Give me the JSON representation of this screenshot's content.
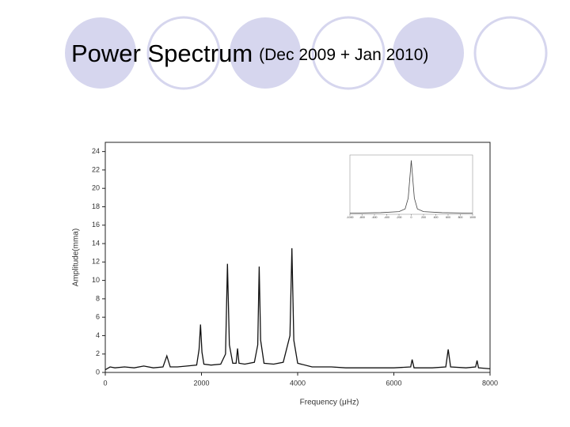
{
  "slide": {
    "title": "Power Spectrum",
    "subtitle": "(Dec 2009 + Jan 2010)"
  },
  "chart_data": [
    {
      "type": "line",
      "x_label": "Frequency (μHz)",
      "y_label": "Amplitude(mma)",
      "x": [
        0,
        100,
        200,
        400,
        600,
        800,
        1000,
        1200,
        1280,
        1350,
        1500,
        1700,
        1900,
        1950,
        1980,
        2010,
        2050,
        2200,
        2400,
        2500,
        2540,
        2580,
        2650,
        2720,
        2750,
        2780,
        2900,
        3100,
        3170,
        3200,
        3230,
        3300,
        3500,
        3700,
        3840,
        3880,
        3920,
        4000,
        4300,
        4700,
        5000,
        5500,
        6000,
        6350,
        6380,
        6420,
        6800,
        7080,
        7130,
        7180,
        7500,
        7700,
        7730,
        7760,
        8000
      ],
      "values": [
        0.3,
        0.6,
        0.5,
        0.6,
        0.5,
        0.7,
        0.5,
        0.6,
        1.8,
        0.6,
        0.6,
        0.7,
        0.8,
        2.5,
        5.2,
        2.2,
        0.9,
        0.8,
        0.9,
        2,
        11.8,
        3,
        1,
        1,
        2.6,
        1,
        0.9,
        1.1,
        3,
        11.5,
        3.5,
        1,
        0.9,
        1.1,
        4,
        13.5,
        3.5,
        1,
        0.6,
        0.6,
        0.5,
        0.5,
        0.5,
        0.6,
        1.4,
        0.5,
        0.5,
        0.6,
        2.5,
        0.6,
        0.5,
        0.6,
        1.3,
        0.5,
        0.4
      ],
      "color": "#111111",
      "xlim": [
        0,
        8000
      ],
      "xticks": [
        0,
        2000,
        4000,
        6000,
        8000
      ],
      "ylim": [
        0,
        25
      ],
      "yticks": [
        0,
        2,
        4,
        6,
        8,
        10,
        12,
        14,
        16,
        18,
        20,
        22,
        24
      ]
    },
    {
      "type": "line",
      "x": [
        -1000,
        -500,
        -200,
        -100,
        -50,
        0,
        50,
        100,
        200,
        500,
        1000
      ],
      "values": [
        0.02,
        0.03,
        0.05,
        0.1,
        0.3,
        1,
        0.3,
        0.1,
        0.05,
        0.03,
        0.02
      ],
      "color": "#444444",
      "xlim": [
        -1000,
        1000
      ],
      "xticks": [
        -1000,
        -800,
        -600,
        -400,
        -200,
        0,
        200,
        400,
        600,
        800,
        1000
      ],
      "ylim": [
        0,
        1.1
      ]
    }
  ]
}
